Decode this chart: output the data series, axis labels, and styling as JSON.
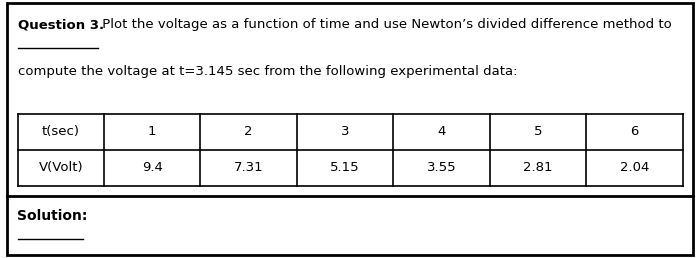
{
  "question_label": "Question 3.",
  "question_line1": " Plot the voltage as a function of time and use Newton’s divided difference method to",
  "question_line2": "compute the voltage at t=3.145 sec from the following experimental data:",
  "table_headers": [
    "t(sec)",
    "1",
    "2",
    "3",
    "4",
    "5",
    "6"
  ],
  "table_row": [
    "V(Volt)",
    "9.4",
    "7.31",
    "5.15",
    "3.55",
    "2.81",
    "2.04"
  ],
  "solution_label": "Solution:",
  "bg_color": "white",
  "border_color": "black",
  "text_color": "black",
  "font_size_question": 9.5,
  "font_size_table": 9.5,
  "font_size_solution": 10
}
